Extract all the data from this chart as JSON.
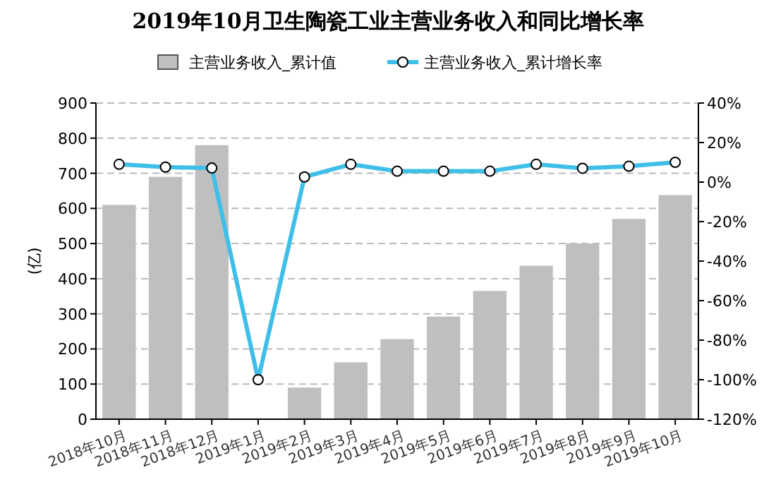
{
  "chart_data": {
    "type": "bar",
    "title": "2019年10月卫生陶瓷工业主营业务收入和同比增长率",
    "ylabel": "(亿)",
    "categories": [
      "2018年10月",
      "2018年11月",
      "2018年12月",
      "2019年1月",
      "2019年2月",
      "2019年3月",
      "2019年4月",
      "2019年5月",
      "2019年6月",
      "2019年7月",
      "2019年8月",
      "2019年9月",
      "2019年10月"
    ],
    "series": [
      {
        "name": "主营业务收入_累计值",
        "color": "#bfbfbf",
        "values": [
          610,
          690,
          780,
          null,
          90,
          162,
          228,
          292,
          365,
          437,
          500,
          570,
          638
        ]
      },
      {
        "name": "主营业务收入_累计增长率",
        "type": "line",
        "axis": "y2",
        "color": "#3fbfe8",
        "marker": "circle",
        "values": [
          9,
          7.6,
          7.1,
          -100,
          2.6,
          9,
          5.5,
          5.5,
          5.5,
          9,
          7,
          8,
          10
        ]
      }
    ],
    "ylim": [
      0,
      900
    ],
    "yticks": [
      0,
      100,
      200,
      300,
      400,
      500,
      600,
      700,
      800,
      900
    ],
    "y2lim": [
      -120,
      40
    ],
    "y2ticks": [
      {
        "value": -120,
        "label": "-120%"
      },
      {
        "value": -100,
        "label": "-100%"
      },
      {
        "value": -80,
        "label": "-80%"
      },
      {
        "value": -60,
        "label": "-60%"
      },
      {
        "value": -40,
        "label": "-40%"
      },
      {
        "value": -20,
        "label": "-20%"
      },
      {
        "value": 0,
        "label": "0%"
      },
      {
        "value": 20,
        "label": "20%"
      },
      {
        "value": 40,
        "label": "40%"
      }
    ],
    "grid": "y",
    "legend": "top"
  }
}
